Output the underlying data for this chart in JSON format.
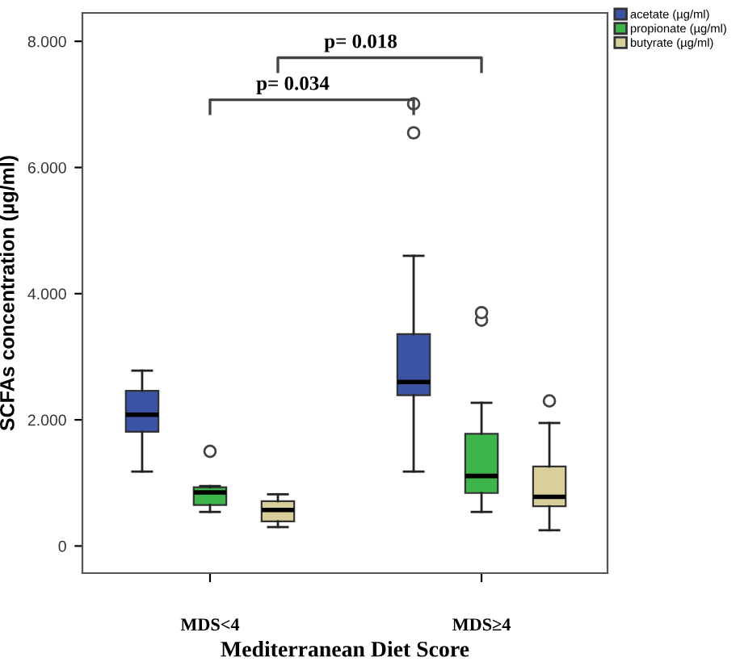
{
  "chart_data": {
    "type": "box",
    "xlabel": "Mediterranean Diet Score",
    "ylabel": "SCFAs concentration (µg/ml)",
    "categories": [
      "MDS<4",
      "MDS≥4"
    ],
    "series": [
      {
        "name": "acetate (µg/ml)",
        "color": "#3a53a4",
        "boxes": [
          {
            "low": 1.18,
            "q1": 1.81,
            "median": 2.08,
            "q3": 2.46,
            "high": 2.78
          },
          {
            "low": 1.18,
            "q1": 2.39,
            "median": 2.6,
            "q3": 3.36,
            "high": 4.6,
            "outliers": [
              6.55,
              7.01
            ]
          }
        ]
      },
      {
        "name": "propionate (µg/ml)",
        "color": "#3db54a",
        "boxes": [
          {
            "low": 0.54,
            "q1": 0.65,
            "median": 0.85,
            "q3": 0.93,
            "high": 0.95,
            "outliers": [
              1.5
            ]
          },
          {
            "low": 0.54,
            "q1": 0.84,
            "median": 1.11,
            "q3": 1.78,
            "high": 2.27,
            "outliers": [
              3.58,
              3.7
            ]
          }
        ]
      },
      {
        "name": "butyrate (µg/ml)",
        "color": "#d9cf9b",
        "boxes": [
          {
            "low": 0.3,
            "q1": 0.39,
            "median": 0.57,
            "q3": 0.71,
            "high": 0.82
          },
          {
            "low": 0.25,
            "q1": 0.63,
            "median": 0.78,
            "q3": 1.26,
            "high": 1.95,
            "outliers": [
              2.3
            ]
          }
        ]
      }
    ],
    "ylim": [
      -0.43,
      8.45
    ],
    "yticks": [
      0,
      {
        "value": 2,
        "label": "2.000"
      },
      {
        "value": 4,
        "label": "4.000"
      },
      {
        "value": 6,
        "label": "6.000"
      },
      {
        "value": 8,
        "label": "8.000"
      }
    ],
    "annotations": [
      "p= 0.034",
      "p= 0.018"
    ],
    "grid": false,
    "legend": "right"
  }
}
